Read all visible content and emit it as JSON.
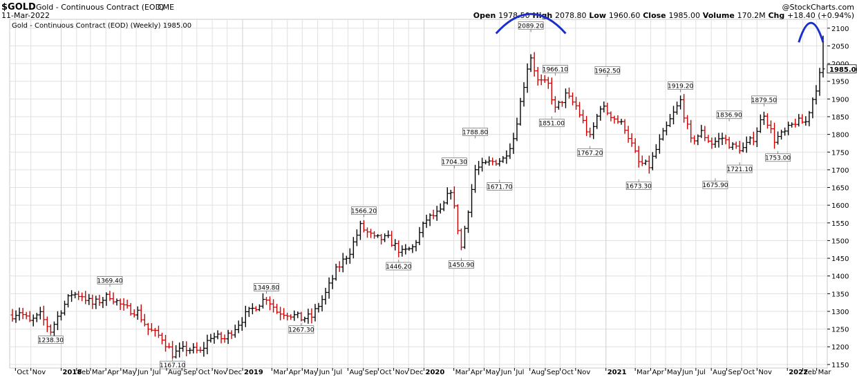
{
  "header": {
    "symbol": "$GOLD",
    "name": "Gold - Continuous Contract (EOD)",
    "exchange": "CME",
    "date": "11-Mar-2022",
    "watermark": "@StockCharts.com",
    "legend": "Gold - Continuous Contract (EOD) (Weekly) 1985.00"
  },
  "ohlc": [
    {
      "label": "Open",
      "value": "1978.50"
    },
    {
      "label": "High",
      "value": "2078.80"
    },
    {
      "label": "Low",
      "value": "1960.60"
    },
    {
      "label": "Close",
      "value": "1985.00"
    },
    {
      "label": "Volume",
      "value": "170.2M"
    },
    {
      "label": "Chg",
      "value": "+18.40 (+0.94%)"
    }
  ],
  "colors": {
    "up": "#000000",
    "down": "#cc0000",
    "grid": "#e0e0e0",
    "arc": "#1a2ecc",
    "last_tag": "#ffffff"
  },
  "chart_data": {
    "type": "ohlc",
    "title": "Gold - Continuous Contract (EOD) (Weekly) 1985.00",
    "interval": "weekly",
    "y_axis": {
      "position": "right",
      "range": [
        1140,
        2125
      ],
      "ticks": [
        1150,
        1200,
        1250,
        1300,
        1350,
        1400,
        1450,
        1500,
        1550,
        1600,
        1650,
        1700,
        1750,
        1800,
        1850,
        1900,
        1950,
        2000,
        2050,
        2100
      ]
    },
    "last_price": "1985.00",
    "grid": true,
    "x_axis": {
      "start": "2017-09-25",
      "end": "2022-03-14",
      "labels": [
        {
          "text": "Oct",
          "date": "2017-10-01"
        },
        {
          "text": "Nov",
          "date": "2017-11-01"
        },
        {
          "text": "2018",
          "date": "2018-01-01",
          "year": true
        },
        {
          "text": "Feb",
          "date": "2018-02-01"
        },
        {
          "text": "Mar",
          "date": "2018-03-01"
        },
        {
          "text": "Apr",
          "date": "2018-04-01"
        },
        {
          "text": "May",
          "date": "2018-05-01"
        },
        {
          "text": "Jun",
          "date": "2018-06-01"
        },
        {
          "text": "Jul",
          "date": "2018-07-01"
        },
        {
          "text": "Aug",
          "date": "2018-08-01"
        },
        {
          "text": "Sep",
          "date": "2018-09-01"
        },
        {
          "text": "Oct",
          "date": "2018-10-01"
        },
        {
          "text": "Nov",
          "date": "2018-11-01"
        },
        {
          "text": "Dec",
          "date": "2018-12-01"
        },
        {
          "text": "2019",
          "date": "2019-01-01",
          "year": true
        },
        {
          "text": "Mar",
          "date": "2019-03-01"
        },
        {
          "text": "Apr",
          "date": "2019-04-01"
        },
        {
          "text": "May",
          "date": "2019-05-01"
        },
        {
          "text": "Jun",
          "date": "2019-06-01"
        },
        {
          "text": "Jul",
          "date": "2019-07-01"
        },
        {
          "text": "Aug",
          "date": "2019-08-01"
        },
        {
          "text": "Sep",
          "date": "2019-09-01"
        },
        {
          "text": "Oct",
          "date": "2019-10-01"
        },
        {
          "text": "Nov",
          "date": "2019-11-01"
        },
        {
          "text": "Dec",
          "date": "2019-12-01"
        },
        {
          "text": "2020",
          "date": "2020-01-01",
          "year": true
        },
        {
          "text": "Mar",
          "date": "2020-03-01"
        },
        {
          "text": "Apr",
          "date": "2020-04-01"
        },
        {
          "text": "May",
          "date": "2020-05-01"
        },
        {
          "text": "Jun",
          "date": "2020-06-01"
        },
        {
          "text": "Jul",
          "date": "2020-07-01"
        },
        {
          "text": "Aug",
          "date": "2020-08-01"
        },
        {
          "text": "Sep",
          "date": "2020-09-01"
        },
        {
          "text": "Oct",
          "date": "2020-10-01"
        },
        {
          "text": "Nov",
          "date": "2020-11-01"
        },
        {
          "text": "2021",
          "date": "2021-01-01",
          "year": true
        },
        {
          "text": "Mar",
          "date": "2021-03-01"
        },
        {
          "text": "Apr",
          "date": "2021-04-01"
        },
        {
          "text": "May",
          "date": "2021-05-01"
        },
        {
          "text": "Jun",
          "date": "2021-06-01"
        },
        {
          "text": "Jul",
          "date": "2021-07-01"
        },
        {
          "text": "Aug",
          "date": "2021-08-01"
        },
        {
          "text": "Sep",
          "date": "2021-09-01"
        },
        {
          "text": "Oct",
          "date": "2021-10-01"
        },
        {
          "text": "Nov",
          "date": "2021-11-01"
        },
        {
          "text": "2022",
          "date": "2022-01-01",
          "year": true
        },
        {
          "text": "Feb",
          "date": "2022-02-01"
        },
        {
          "text": "Mar",
          "date": "2022-03-01"
        }
      ]
    },
    "anchors": [
      [
        "2017-09-25",
        1290
      ],
      [
        "2017-10-09",
        1300
      ],
      [
        "2017-10-30",
        1270
      ],
      [
        "2017-11-20",
        1290
      ],
      [
        "2017-12-11",
        1245
      ],
      [
        "2018-01-01",
        1305
      ],
      [
        "2018-01-22",
        1350
      ],
      [
        "2018-02-12",
        1345
      ],
      [
        "2018-03-05",
        1320
      ],
      [
        "2018-04-09",
        1345
      ],
      [
        "2018-05-07",
        1310
      ],
      [
        "2018-06-04",
        1298
      ],
      [
        "2018-06-25",
        1250
      ],
      [
        "2018-07-23",
        1225
      ],
      [
        "2018-08-13",
        1180
      ],
      [
        "2018-09-10",
        1195
      ],
      [
        "2018-10-08",
        1185
      ],
      [
        "2018-10-29",
        1230
      ],
      [
        "2018-11-26",
        1222
      ],
      [
        "2018-12-17",
        1255
      ],
      [
        "2019-01-07",
        1290
      ],
      [
        "2019-02-18",
        1340
      ],
      [
        "2019-03-11",
        1300
      ],
      [
        "2019-04-01",
        1295
      ],
      [
        "2019-04-29",
        1280
      ],
      [
        "2019-05-20",
        1285
      ],
      [
        "2019-06-17",
        1350
      ],
      [
        "2019-07-08",
        1415
      ],
      [
        "2019-08-05",
        1470
      ],
      [
        "2019-08-26",
        1540
      ],
      [
        "2019-09-23",
        1505
      ],
      [
        "2019-10-21",
        1505
      ],
      [
        "2019-11-18",
        1465
      ],
      [
        "2019-12-09",
        1480
      ],
      [
        "2020-01-06",
        1560
      ],
      [
        "2020-02-03",
        1580
      ],
      [
        "2020-02-24",
        1645
      ],
      [
        "2020-03-16",
        1480
      ],
      [
        "2020-04-13",
        1700
      ],
      [
        "2020-05-11",
        1720
      ],
      [
        "2020-06-08",
        1730
      ],
      [
        "2020-06-29",
        1790
      ],
      [
        "2020-07-27",
        1990
      ],
      [
        "2020-08-03",
        2020
      ],
      [
        "2020-08-17",
        1950
      ],
      [
        "2020-09-07",
        1940
      ],
      [
        "2020-09-21",
        1870
      ],
      [
        "2020-10-12",
        1910
      ],
      [
        "2020-11-02",
        1880
      ],
      [
        "2020-11-30",
        1790
      ],
      [
        "2020-12-21",
        1880
      ],
      [
        "2021-01-11",
        1855
      ],
      [
        "2021-02-08",
        1820
      ],
      [
        "2021-03-08",
        1720
      ],
      [
        "2021-03-29",
        1710
      ],
      [
        "2021-04-19",
        1780
      ],
      [
        "2021-05-10",
        1840
      ],
      [
        "2021-05-31",
        1895
      ],
      [
        "2021-06-21",
        1780
      ],
      [
        "2021-07-12",
        1805
      ],
      [
        "2021-08-02",
        1775
      ],
      [
        "2021-08-23",
        1790
      ],
      [
        "2021-09-13",
        1765
      ],
      [
        "2021-10-04",
        1760
      ],
      [
        "2021-10-25",
        1790
      ],
      [
        "2021-11-15",
        1860
      ],
      [
        "2021-12-06",
        1785
      ],
      [
        "2021-12-27",
        1805
      ],
      [
        "2022-01-17",
        1835
      ],
      [
        "2022-02-07",
        1835
      ],
      [
        "2022-02-21",
        1900
      ],
      [
        "2022-03-07",
        1966
      ],
      [
        "2022-03-14",
        1985
      ]
    ],
    "annotations": [
      {
        "text": "1238.30",
        "date": "2017-12-11",
        "value": 1238.3,
        "pos": "below"
      },
      {
        "text": "1369.40",
        "date": "2018-04-09",
        "value": 1369.4,
        "pos": "above"
      },
      {
        "text": "1167.10",
        "date": "2018-08-13",
        "value": 1167.1,
        "pos": "below"
      },
      {
        "text": "1349.80",
        "date": "2019-02-18",
        "value": 1349.8,
        "pos": "above"
      },
      {
        "text": "1267.30",
        "date": "2019-04-29",
        "value": 1267.3,
        "pos": "below"
      },
      {
        "text": "1566.20",
        "date": "2019-09-02",
        "value": 1566.2,
        "pos": "above"
      },
      {
        "text": "1446.20",
        "date": "2019-11-11",
        "value": 1446.2,
        "pos": "below"
      },
      {
        "text": "1704.30",
        "date": "2020-03-02",
        "value": 1704.3,
        "pos": "above"
      },
      {
        "text": "1450.90",
        "date": "2020-03-16",
        "value": 1450.9,
        "pos": "below"
      },
      {
        "text": "1788.80",
        "date": "2020-04-13",
        "value": 1788.8,
        "pos": "above"
      },
      {
        "text": "1671.70",
        "date": "2020-06-01",
        "value": 1671.7,
        "pos": "below"
      },
      {
        "text": "2089.20",
        "date": "2020-08-03",
        "value": 2089.2,
        "pos": "above"
      },
      {
        "text": "1851.00",
        "date": "2020-09-14",
        "value": 1851.0,
        "pos": "below"
      },
      {
        "text": "1966.10",
        "date": "2020-09-21",
        "value": 1966.1,
        "pos": "above"
      },
      {
        "text": "1962.50",
        "date": "2021-01-04",
        "value": 1962.5,
        "pos": "above"
      },
      {
        "text": "1767.20",
        "date": "2020-11-30",
        "value": 1767.2,
        "pos": "below"
      },
      {
        "text": "1673.30",
        "date": "2021-03-08",
        "value": 1673.3,
        "pos": "below"
      },
      {
        "text": "1919.20",
        "date": "2021-05-31",
        "value": 1919.2,
        "pos": "above"
      },
      {
        "text": "1675.90",
        "date": "2021-08-09",
        "value": 1675.9,
        "pos": "below"
      },
      {
        "text": "1836.90",
        "date": "2021-09-06",
        "value": 1836.9,
        "pos": "above"
      },
      {
        "text": "1721.10",
        "date": "2021-09-27",
        "value": 1721.1,
        "pos": "below"
      },
      {
        "text": "1879.50",
        "date": "2021-11-15",
        "value": 1879.5,
        "pos": "above"
      },
      {
        "text": "1753.00",
        "date": "2021-12-13",
        "value": 1753.0,
        "pos": "below"
      }
    ],
    "arcs": [
      {
        "from": "2020-05-25",
        "to": "2020-10-12",
        "peak": 2140
      },
      {
        "from": "2022-01-24",
        "to": "2022-03-14",
        "peak": 2115
      }
    ]
  }
}
